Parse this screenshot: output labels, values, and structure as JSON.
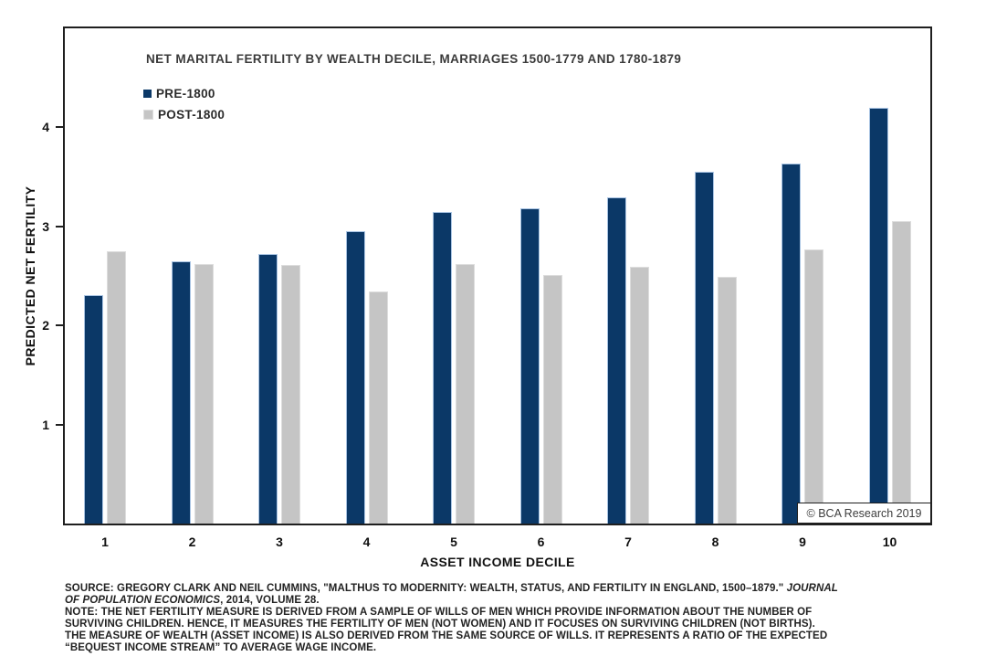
{
  "page": {
    "background": "#ffffff"
  },
  "chart": {
    "title": "NET MARITAL FERTILITY BY WEALTH DECILE, MARRIAGES 1500-1779 AND 1780-1879",
    "copyright": "© BCA Research 2019"
  },
  "chart_data": {
    "type": "bar",
    "title": "NET MARITAL FERTILITY BY WEALTH DECILE, MARRIAGES 1500-1779 AND 1780-1879",
    "xlabel": "ASSET INCOME DECILE",
    "ylabel": "PREDICTED NET FERTILITY",
    "categories": [
      "1",
      "2",
      "3",
      "4",
      "5",
      "6",
      "7",
      "8",
      "9",
      "10"
    ],
    "series": [
      {
        "name": "PRE-1800",
        "color": "#0b3867",
        "border_color": "#a9c4e3",
        "values": [
          2.3,
          2.64,
          2.71,
          2.94,
          3.14,
          3.17,
          3.28,
          3.54,
          3.62,
          4.18
        ]
      },
      {
        "name": "POST-1800",
        "color": "#c5c5c5",
        "border_color": "#dddddd",
        "values": [
          2.74,
          2.61,
          2.6,
          2.34,
          2.61,
          2.5,
          2.58,
          2.48,
          2.76,
          3.04
        ]
      }
    ],
    "ylim": [
      0,
      5
    ],
    "yticks": [
      1,
      2,
      3,
      4
    ],
    "grid": false,
    "legend_position": "top-left-inside",
    "annotations": [
      "© BCA Research 2019"
    ]
  },
  "footer": {
    "lines": [
      [
        {
          "t": "SOURCE: GREGORY CLARK AND NEIL CUMMINS, \"MALTHUS TO MODERNITY: WEALTH, STATUS, AND FERTILITY IN ENGLAND, 1500–1879.\" ",
          "i": false
        },
        {
          "t": "JOURNAL",
          "i": true
        }
      ],
      [
        {
          "t": "OF POPULATION ECONOMICS",
          "i": true
        },
        {
          "t": ", 2014, VOLUME 28.",
          "i": false
        }
      ],
      [
        {
          "t": "NOTE: THE NET FERTILITY MEASURE IS DERIVED FROM A SAMPLE OF WILLS OF MEN WHICH PROVIDE INFORMATION ABOUT THE NUMBER OF",
          "i": false
        }
      ],
      [
        {
          "t": "SURVIVING CHILDREN. HENCE, IT MEASURES THE FERTILITY OF MEN (NOT WOMEN) AND IT FOCUSES ON SURVIVING CHILDREN (NOT BIRTHS).",
          "i": false
        }
      ],
      [
        {
          "t": "THE MEASURE OF WEALTH (ASSET INCOME) IS ALSO DERIVED FROM THE SAME SOURCE OF WILLS. IT REPRESENTS A RATIO OF THE EXPECTED",
          "i": false
        }
      ],
      [
        {
          "t": "“BEQUEST INCOME STREAM” TO AVERAGE WAGE INCOME.",
          "i": false
        }
      ]
    ]
  }
}
